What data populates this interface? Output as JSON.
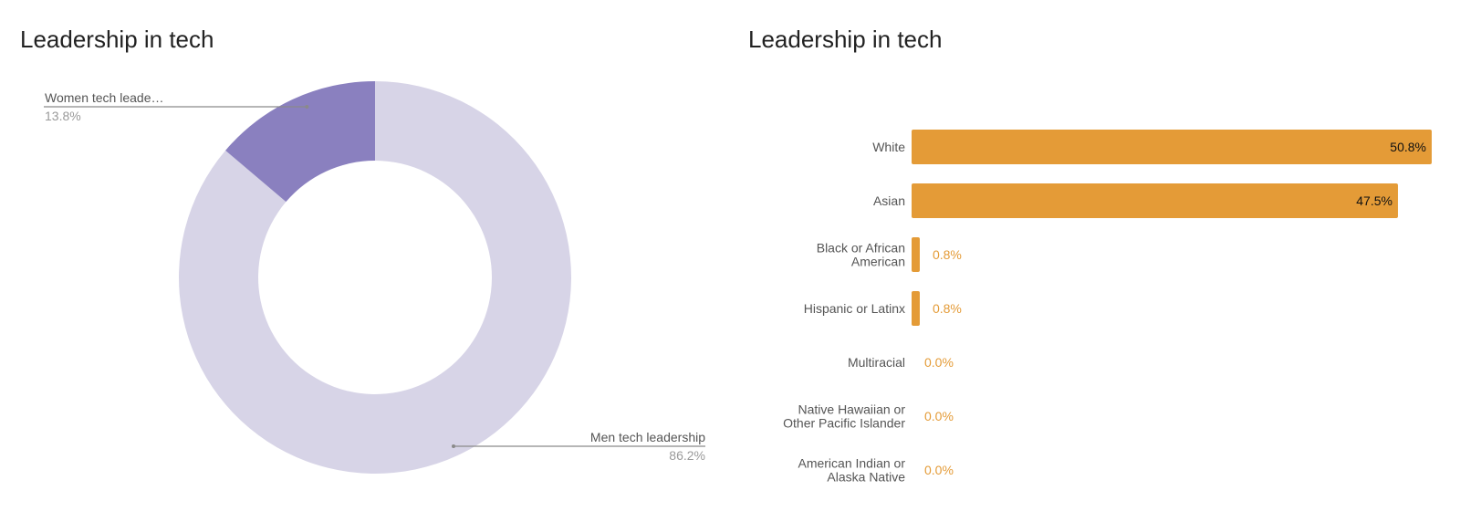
{
  "colors": {
    "men": "#d7d4e7",
    "women": "#8a80bf",
    "bar": "#e49b37",
    "value_outside": "#e49b37",
    "value_inside": "#111111",
    "category_label": "#555555",
    "callout_value": "#9a9a9a",
    "leader_line": "#8a8a8a"
  },
  "chart_data": [
    {
      "type": "pie",
      "variant": "donut",
      "title": "Leadership in tech",
      "slices": [
        {
          "label": "Men tech leadership",
          "value": 86.2,
          "value_label": "86.2%"
        },
        {
          "label": "Women tech leade…",
          "value": 13.8,
          "value_label": "13.8%"
        }
      ]
    },
    {
      "type": "bar",
      "orientation": "horizontal",
      "title": "Leadership in tech",
      "xlim": [
        0,
        50.8
      ],
      "categories": [
        [
          "White"
        ],
        [
          "Asian"
        ],
        [
          "Black or African",
          "American"
        ],
        [
          "Hispanic or Latinx"
        ],
        [
          "Multiracial"
        ],
        [
          "Native Hawaiian or",
          "Other Pacific Islander"
        ],
        [
          "American Indian or",
          "Alaska Native"
        ]
      ],
      "values": [
        50.8,
        47.5,
        0.8,
        0.8,
        0.0,
        0.0,
        0.0
      ],
      "value_labels": [
        "50.8%",
        "47.5%",
        "0.8%",
        "0.8%",
        "0.0%",
        "0.0%",
        "0.0%"
      ]
    }
  ]
}
